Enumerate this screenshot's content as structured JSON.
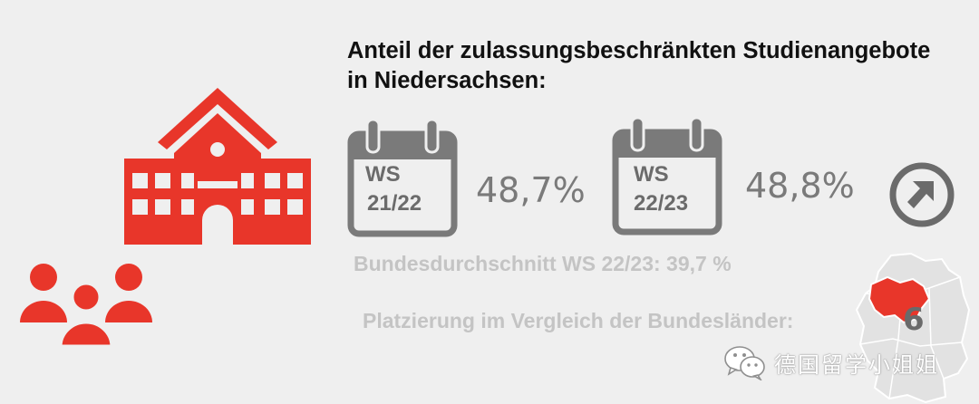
{
  "title": "Anteil der zulassungsbeschränkten Studienangebote in Niedersachsen:",
  "semesters": [
    {
      "line1": "WS",
      "line2": "21/22",
      "value": "48,7%"
    },
    {
      "line1": "WS",
      "line2": "22/23",
      "value": "48,8%"
    }
  ],
  "national_average": "Bundesdurchschnitt WS 22/23: 39,7 %",
  "ranking": {
    "label": "Platzierung im Vergleich der Bundesländer:",
    "value": "6"
  },
  "watermark": "德国留学小姐姐",
  "icons": [
    "school-building-icon",
    "people-group-icon",
    "calendar-icon",
    "arrow-up-right-circle-icon",
    "germany-map-icon",
    "wechat-icon"
  ],
  "colors": {
    "accent": "#e8362a",
    "grey": "#7a7a7a",
    "light_grey": "#c4c4c4",
    "background": "#efefef"
  }
}
